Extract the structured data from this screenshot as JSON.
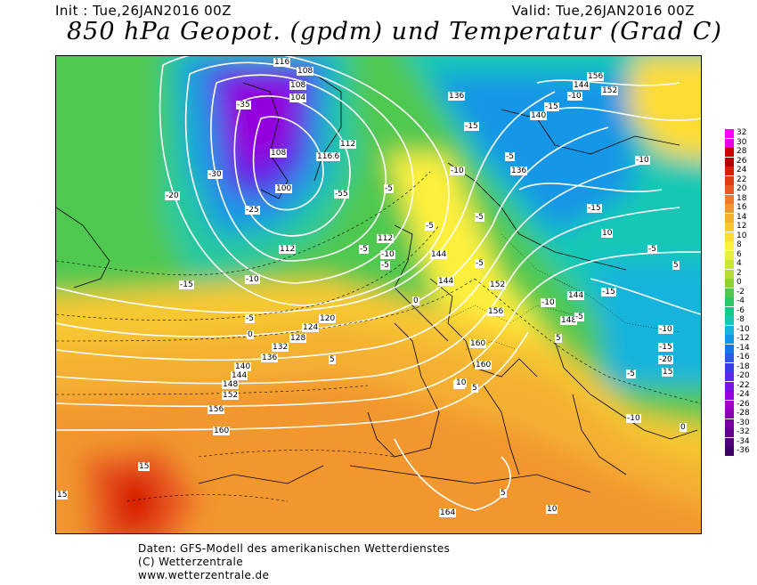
{
  "header": {
    "init": "Init : Tue,26JAN2016 00Z",
    "valid": "Valid: Tue,26JAN2016 00Z",
    "title": "850 hPa Geopot. (gpdm) und Temperatur (Grad C)"
  },
  "geopotential_labels": [
    "116",
    "108",
    "104",
    "100",
    "112",
    "120",
    "124",
    "128",
    "132",
    "136",
    "140",
    "144",
    "148",
    "152",
    "156",
    "160",
    "164",
    "116",
    "112",
    "108",
    "136",
    "144",
    "152",
    "156",
    "140",
    "136",
    "148",
    "144",
    "152",
    "144",
    "160",
    "160",
    "156",
    "144",
    "112",
    "108",
    "116"
  ],
  "temperature_labels": [
    "-35",
    "-30",
    "-25",
    "-20",
    "-15",
    "-10",
    "-5",
    "0",
    "5",
    "10",
    "15",
    "-5",
    "-10",
    "-15",
    "-5",
    "-10",
    "-5",
    "-5",
    "5",
    "10",
    "-55",
    "-5",
    "-5",
    "-10",
    "5",
    "10",
    "15",
    "-5",
    "-15",
    "-10",
    "-10",
    "-15",
    "-5",
    "0",
    "5",
    "10",
    "15",
    "-5",
    "0",
    "5",
    "-10",
    "-15",
    "-20",
    "-15",
    "-10",
    "-5"
  ],
  "legend": {
    "values": [
      "32",
      "30",
      "28",
      "26",
      "24",
      "22",
      "20",
      "18",
      "16",
      "14",
      "12",
      "10",
      "8",
      "6",
      "4",
      "2",
      "0",
      "-2",
      "-4",
      "-6",
      "-8",
      "-10",
      "-12",
      "-14",
      "-16",
      "-18",
      "-20",
      "-22",
      "-24",
      "-26",
      "-28",
      "-30",
      "-32",
      "-34",
      "-36"
    ],
    "colors": [
      "#ff00ff",
      "#e600e6",
      "#cc0000",
      "#b30000",
      "#d81e05",
      "#e03c14",
      "#e85a23",
      "#ee7a2e",
      "#f2962f",
      "#f4b030",
      "#f8c832",
      "#fcdc32",
      "#fff03c",
      "#e6f03c",
      "#c8e632",
      "#b4dc32",
      "#8cd232",
      "#50c850",
      "#28c864",
      "#14c88c",
      "#14c8b4",
      "#14b4dc",
      "#1496e6",
      "#1478e6",
      "#285ae6",
      "#3c3ce6",
      "#5a28e6",
      "#7814e6",
      "#9600dc",
      "#a000c8",
      "#8c00b4",
      "#7800a0",
      "#64008c",
      "#500078",
      "#3c0064"
    ]
  },
  "footer": {
    "line1": "Daten: GFS-Modell des amerikanischen Wetterdienstes",
    "line2": "(C) Wetterzentrale",
    "line3": "www.wetterzentrale.de"
  }
}
